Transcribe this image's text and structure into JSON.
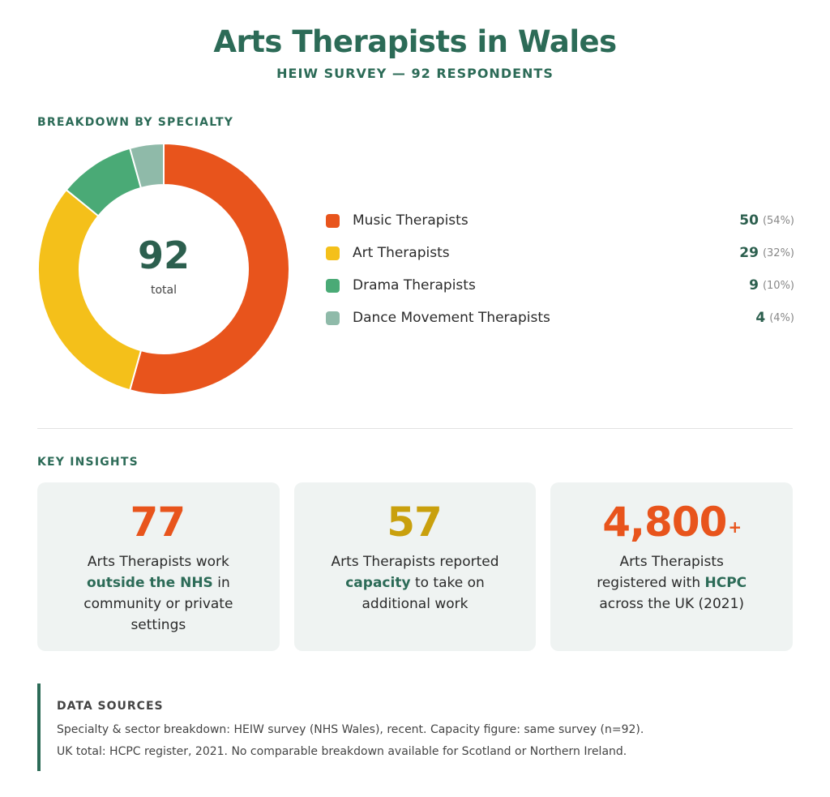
{
  "header": {
    "title": "Arts Therapists in Wales",
    "subtitle": "HEIW SURVEY — 92 RESPONDENTS"
  },
  "breakdown": {
    "label": "BREAKDOWN BY SPECIALTY",
    "total_value": "92",
    "total_label": "total"
  },
  "chart_data": {
    "type": "pie",
    "title": "",
    "categories": [
      "Music Therapists",
      "Art Therapists",
      "Drama Therapists",
      "Dance Movement Therapists"
    ],
    "values": [
      50,
      29,
      9,
      4
    ],
    "percent_labels": [
      "(54%)",
      "(32%)",
      "(10%)",
      "(4%)"
    ],
    "colors": [
      "#e8541c",
      "#f4c01a",
      "#4aaa76",
      "#8fbaa9"
    ],
    "total": 92,
    "legend_position": "right"
  },
  "insights": {
    "label": "KEY INSIGHTS",
    "cards": [
      {
        "number": "77",
        "plus": "",
        "color": "#e8541c",
        "pre": "Arts Therapists work ",
        "highlight": "outside the NHS",
        "post": " in community or private settings"
      },
      {
        "number": "57",
        "plus": "",
        "color": "#c9a00d",
        "pre": "Arts Therapists reported ",
        "highlight": "capacity",
        "post": " to take on additional work"
      },
      {
        "number": "4,800",
        "plus": "+",
        "color": "#e8541c",
        "pre": "Arts Therapists registered with ",
        "highlight": "HCPC",
        "post": " across the UK (2021)"
      }
    ]
  },
  "sources": {
    "title": "DATA SOURCES",
    "line1": "Specialty & sector breakdown: HEIW survey (NHS Wales), recent. Capacity figure: same survey (n=92).",
    "line2": "UK total: HCPC register, 2021. No comparable breakdown available for Scotland or Northern Ireland."
  }
}
